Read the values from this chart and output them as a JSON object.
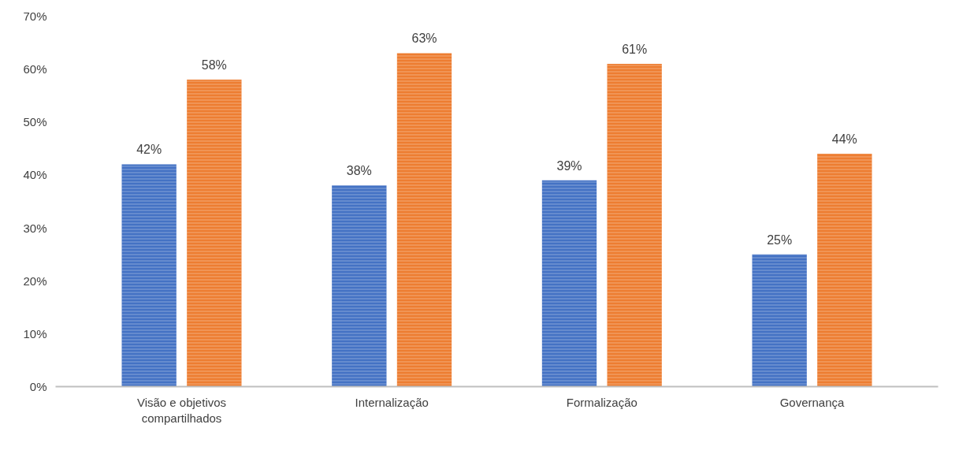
{
  "chart_data": {
    "type": "bar",
    "categories": [
      "Visão e objetivos compartilhados",
      "Internalização",
      "Formalização",
      "Governança"
    ],
    "series": [
      {
        "color": "#4472c4",
        "values": [
          42,
          38,
          39,
          25
        ],
        "value_labels": [
          "42%",
          "38%",
          "39%",
          "25%"
        ]
      },
      {
        "color": "#ed7d31",
        "values": [
          58,
          63,
          61,
          44
        ],
        "value_labels": [
          "58%",
          "63%",
          "61%",
          "44%"
        ]
      }
    ],
    "ylim": [
      0,
      70
    ],
    "yticks": [
      {
        "value": 0,
        "label": "0%"
      },
      {
        "value": 10,
        "label": "10%"
      },
      {
        "value": 20,
        "label": "20%"
      },
      {
        "value": 30,
        "label": "30%"
      },
      {
        "value": 40,
        "label": "40%"
      },
      {
        "value": 50,
        "label": "50%"
      },
      {
        "value": 60,
        "label": "60%"
      },
      {
        "value": 70,
        "label": "70%"
      }
    ],
    "grid": false
  }
}
